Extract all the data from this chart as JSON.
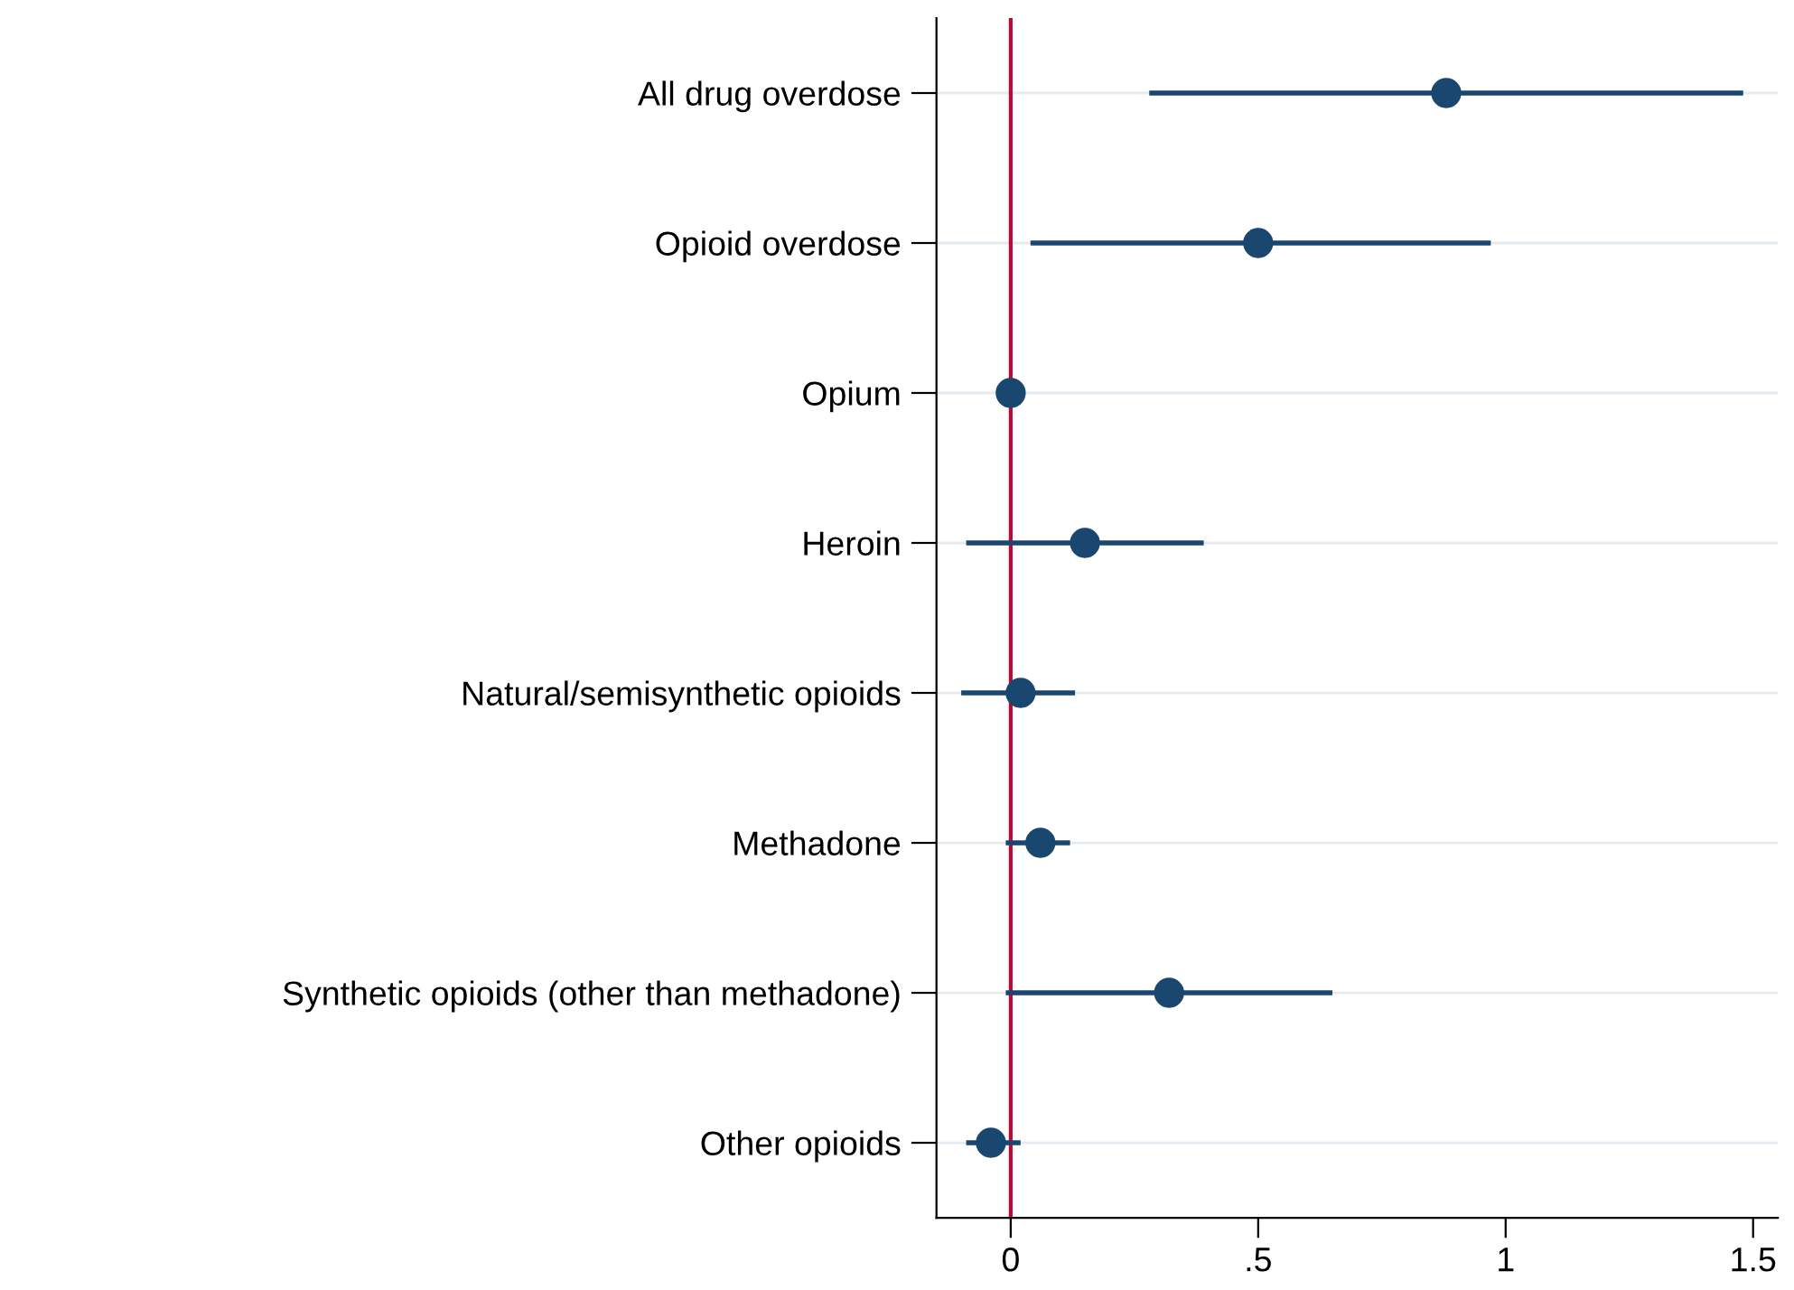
{
  "chart_data": {
    "type": "scatter",
    "orientation": "horizontal",
    "categories": [
      "All drug overdose",
      "Opioid overdose",
      "Opium",
      "Heroin",
      "Natural/semisynthetic opioids",
      "Methadone",
      "Synthetic opioids (other than methadone)",
      "Other opioids"
    ],
    "values": [
      0.88,
      0.5,
      0.0,
      0.15,
      0.02,
      0.06,
      0.32,
      -0.04
    ],
    "errors": [
      [
        0.28,
        1.48
      ],
      [
        0.04,
        0.97
      ],
      null,
      [
        -0.09,
        0.39
      ],
      [
        -0.1,
        0.13
      ],
      [
        -0.01,
        0.12
      ],
      [
        -0.01,
        0.65
      ],
      [
        -0.09,
        0.02
      ]
    ],
    "color": "#1a476f",
    "marker": "circle",
    "xlim": [
      -0.15,
      1.55
    ],
    "xticks": [
      {
        "value": 0,
        "label": "0"
      },
      {
        "value": 0.5,
        "label": ".5"
      },
      {
        "value": 1,
        "label": "1"
      },
      {
        "value": 1.5,
        "label": "1.5"
      }
    ],
    "grid": "y",
    "ref_lines": [
      {
        "axis": "x",
        "value": 0,
        "color": "#c10534"
      }
    ]
  }
}
